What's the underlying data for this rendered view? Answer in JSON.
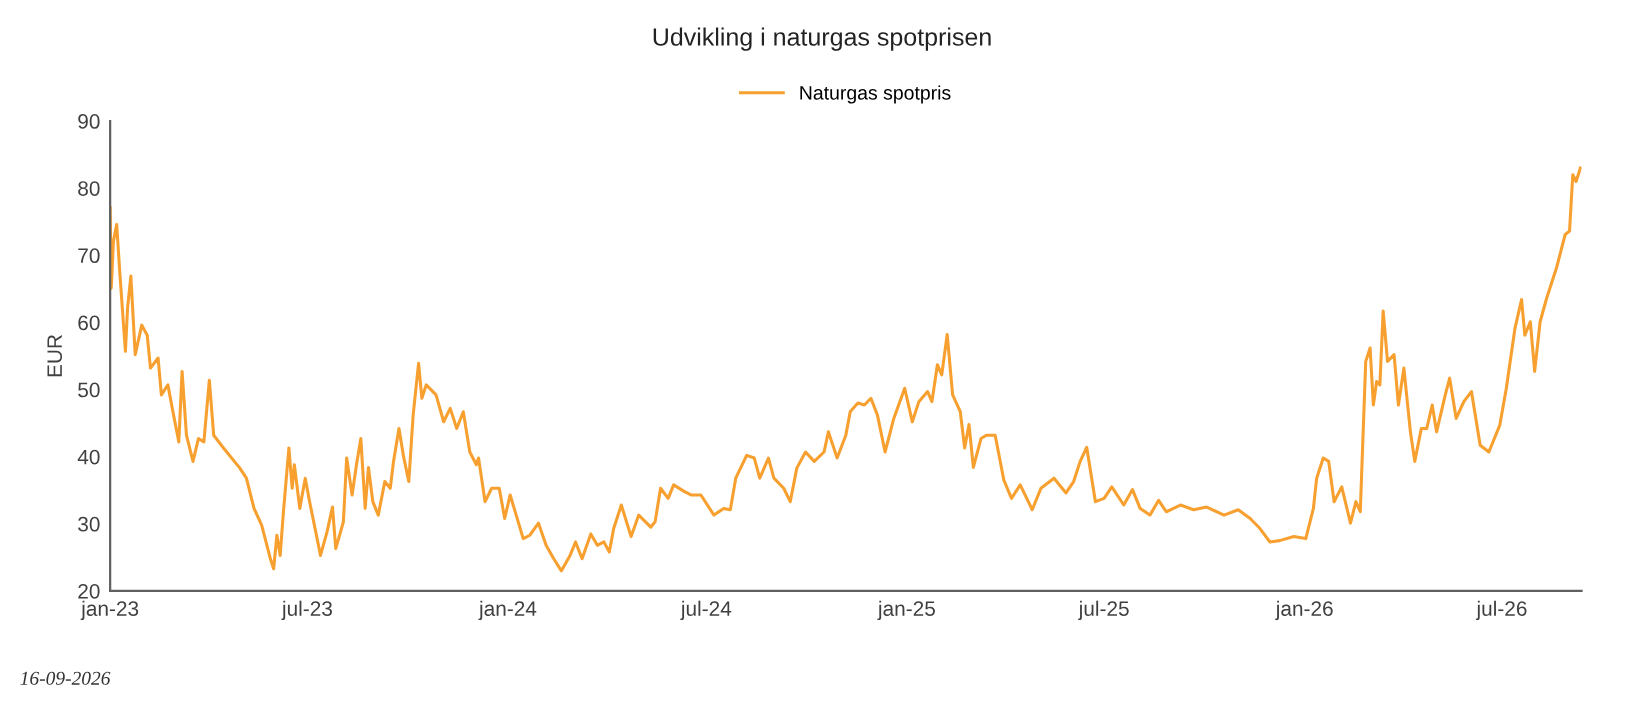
{
  "chart_data": {
    "type": "line",
    "title": "Udvikling i naturgas spotprisen",
    "ylabel": "EUR",
    "annotations": [
      "16-09-2026"
    ],
    "xlim": [
      "2023-01-01",
      "2026-09-12"
    ],
    "xticks": [
      {
        "value": "2023-01-01",
        "label": "jan-23"
      },
      {
        "value": "2023-07-01",
        "label": "jul-23"
      },
      {
        "value": "2024-01-01",
        "label": "jan-24"
      },
      {
        "value": "2024-07-01",
        "label": "jul-24"
      },
      {
        "value": "2025-01-01",
        "label": "jan-25"
      },
      {
        "value": "2025-07-01",
        "label": "jul-25"
      },
      {
        "value": "2026-01-01",
        "label": "jan-26"
      },
      {
        "value": "2026-07-01",
        "label": "jul-26"
      }
    ],
    "ylim": [
      20,
      90
    ],
    "yticks": [
      20,
      30,
      40,
      50,
      60,
      70,
      80,
      90
    ],
    "grid": false,
    "legend": "top",
    "marker": "none",
    "line_style": "solid",
    "series": [
      {
        "name": "Naturgas spotpris",
        "color": "#f7a030",
        "x": [
          "2023-01-01",
          "2023-01-02",
          "2023-01-04",
          "2023-01-07",
          "2023-01-10",
          "2023-01-15",
          "2023-01-17",
          "2023-01-20",
          "2023-01-24",
          "2023-01-30",
          "2023-02-04",
          "2023-02-07",
          "2023-02-14",
          "2023-02-17",
          "2023-02-23",
          "2023-02-27",
          "2023-03-05",
          "2023-03-08",
          "2023-03-12",
          "2023-03-18",
          "2023-03-23",
          "2023-03-28",
          "2023-04-02",
          "2023-04-06",
          "2023-04-15",
          "2023-04-30",
          "2023-05-06",
          "2023-05-13",
          "2023-05-20",
          "2023-05-28",
          "2023-05-31",
          "2023-06-03",
          "2023-06-06",
          "2023-06-09",
          "2023-06-14",
          "2023-06-17",
          "2023-06-19",
          "2023-06-24",
          "2023-06-29",
          "2023-07-03",
          "2023-07-08",
          "2023-07-13",
          "2023-07-19",
          "2023-07-24",
          "2023-07-27",
          "2023-08-03",
          "2023-08-06",
          "2023-08-11",
          "2023-08-15",
          "2023-08-19",
          "2023-08-23",
          "2023-08-26",
          "2023-08-30",
          "2023-09-04",
          "2023-09-10",
          "2023-09-15",
          "2023-09-18",
          "2023-09-23",
          "2023-09-27",
          "2023-10-02",
          "2023-10-06",
          "2023-10-11",
          "2023-10-14",
          "2023-10-18",
          "2023-10-27",
          "2023-11-03",
          "2023-11-09",
          "2023-11-15",
          "2023-11-21",
          "2023-11-27",
          "2023-12-03",
          "2023-12-05",
          "2023-12-11",
          "2023-12-17",
          "2023-12-24",
          "2023-12-29",
          "2024-01-03",
          "2024-01-15",
          "2024-01-21",
          "2024-01-29",
          "2024-02-05",
          "2024-02-12",
          "2024-02-19",
          "2024-02-27",
          "2024-03-03",
          "2024-03-09",
          "2024-03-17",
          "2024-03-23",
          "2024-03-29",
          "2024-04-03",
          "2024-04-07",
          "2024-04-14",
          "2024-04-23",
          "2024-04-30",
          "2024-05-11",
          "2024-05-15",
          "2024-05-20",
          "2024-05-27",
          "2024-06-01",
          "2024-06-11",
          "2024-06-17",
          "2024-06-26",
          "2024-07-08",
          "2024-07-17",
          "2024-07-23",
          "2024-07-28",
          "2024-08-07",
          "2024-08-14",
          "2024-08-19",
          "2024-08-27",
          "2024-09-01",
          "2024-09-10",
          "2024-09-16",
          "2024-09-22",
          "2024-09-30",
          "2024-10-08",
          "2024-10-17",
          "2024-10-21",
          "2024-10-29",
          "2024-11-06",
          "2024-11-10",
          "2024-11-17",
          "2024-11-23",
          "2024-11-29",
          "2024-12-05",
          "2024-12-12",
          "2024-12-20",
          "2024-12-30",
          "2025-01-06",
          "2025-01-12",
          "2025-01-20",
          "2025-01-24",
          "2025-01-29",
          "2025-02-02",
          "2025-02-07",
          "2025-02-12",
          "2025-02-19",
          "2025-02-23",
          "2025-02-27",
          "2025-03-03",
          "2025-03-10",
          "2025-03-15",
          "2025-03-23",
          "2025-03-31",
          "2025-04-07",
          "2025-04-15",
          "2025-04-26",
          "2025-05-04",
          "2025-05-16",
          "2025-05-27",
          "2025-06-03",
          "2025-06-09",
          "2025-06-15",
          "2025-06-23",
          "2025-07-01",
          "2025-07-08",
          "2025-07-19",
          "2025-07-27",
          "2025-08-03",
          "2025-08-12",
          "2025-08-20",
          "2025-08-27",
          "2025-09-09",
          "2025-09-21",
          "2025-10-03",
          "2025-10-19",
          "2025-11-01",
          "2025-11-12",
          "2025-11-21",
          "2025-11-30",
          "2025-12-09",
          "2025-12-22",
          "2026-01-02",
          "2026-01-09",
          "2026-01-12",
          "2026-01-18",
          "2026-01-23",
          "2026-01-28",
          "2026-02-04",
          "2026-02-12",
          "2026-02-17",
          "2026-02-21",
          "2026-02-26",
          "2026-03-02",
          "2026-03-05",
          "2026-03-08",
          "2026-03-11",
          "2026-03-14",
          "2026-03-18",
          "2026-03-24",
          "2026-03-28",
          "2026-04-02",
          "2026-04-08",
          "2026-04-12",
          "2026-04-18",
          "2026-04-23",
          "2026-04-28",
          "2026-05-02",
          "2026-05-10",
          "2026-05-14",
          "2026-05-20",
          "2026-05-27",
          "2026-06-03",
          "2026-06-11",
          "2026-06-19",
          "2026-06-29",
          "2026-07-05",
          "2026-07-13",
          "2026-07-19",
          "2026-07-22",
          "2026-07-27",
          "2026-07-31",
          "2026-08-05",
          "2026-08-11",
          "2026-08-20",
          "2026-08-28",
          "2026-09-01",
          "2026-09-04",
          "2026-09-07",
          "2026-09-11"
        ],
        "values": [
          77.1,
          65.1,
          72.1,
          74.6,
          67.1,
          55.7,
          62.2,
          66.9,
          55.2,
          59.6,
          58.1,
          53.2,
          54.7,
          49.2,
          50.7,
          47.2,
          42.2,
          52.7,
          43.2,
          39.3,
          42.7,
          42.2,
          51.4,
          43.2,
          41.3,
          38.3,
          36.8,
          32.3,
          29.8,
          24.8,
          23.3,
          28.3,
          25.3,
          31.8,
          41.3,
          35.3,
          38.8,
          32.3,
          36.8,
          33.3,
          29.3,
          25.3,
          28.8,
          32.5,
          26.3,
          30.3,
          39.8,
          34.3,
          38.8,
          42.7,
          32.3,
          38.4,
          33.3,
          31.3,
          36.3,
          35.3,
          39.3,
          44.2,
          40.2,
          36.3,
          46.2,
          53.9,
          48.7,
          50.7,
          49.2,
          45.2,
          47.2,
          44.2,
          46.7,
          40.7,
          38.8,
          39.8,
          33.3,
          35.3,
          35.3,
          30.8,
          34.3,
          27.8,
          28.3,
          30.1,
          26.8,
          24.8,
          23.0,
          25.3,
          27.3,
          24.8,
          28.5,
          26.8,
          27.3,
          25.8,
          29.3,
          32.8,
          28.1,
          31.3,
          29.5,
          30.3,
          35.3,
          33.8,
          35.8,
          34.8,
          34.3,
          34.3,
          31.3,
          32.3,
          32.1,
          36.8,
          40.2,
          39.8,
          36.8,
          39.8,
          36.8,
          35.3,
          33.3,
          38.3,
          40.7,
          39.3,
          40.7,
          43.7,
          39.8,
          43.2,
          46.7,
          48.0,
          47.7,
          48.7,
          46.2,
          40.7,
          45.7,
          50.2,
          45.2,
          48.2,
          49.7,
          48.2,
          53.7,
          52.2,
          58.2,
          49.2,
          46.7,
          41.3,
          44.8,
          38.4,
          42.7,
          43.2,
          43.2,
          36.5,
          33.8,
          35.8,
          32.1,
          35.3,
          36.8,
          34.6,
          36.3,
          39.3,
          41.4,
          33.3,
          33.8,
          35.5,
          32.8,
          35.1,
          32.3,
          31.3,
          33.5,
          31.8,
          32.8,
          32.1,
          32.5,
          31.3,
          32.1,
          30.8,
          29.3,
          27.3,
          27.5,
          28.1,
          27.8,
          32.3,
          36.8,
          39.8,
          39.3,
          33.3,
          35.5,
          30.1,
          33.3,
          31.8,
          54.2,
          56.2,
          47.7,
          51.2,
          50.7,
          61.7,
          54.2,
          55.2,
          47.7,
          53.2,
          43.7,
          39.3,
          44.2,
          44.2,
          47.7,
          43.7,
          49.2,
          51.7,
          45.7,
          48.2,
          49.7,
          41.7,
          40.7,
          44.7,
          50.2,
          59.2,
          63.4,
          58.1,
          60.1,
          52.7,
          60.1,
          63.6,
          68.1,
          73.1,
          73.6,
          82.0,
          81.0,
          83.0
        ]
      }
    ]
  }
}
